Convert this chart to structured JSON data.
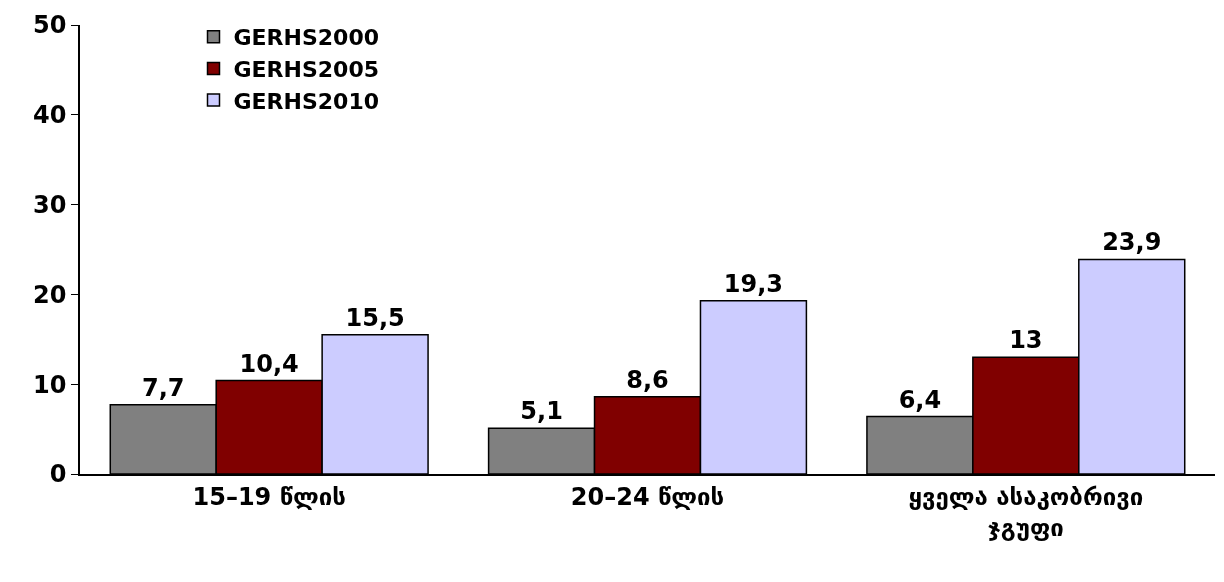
{
  "chart_data": {
    "type": "bar",
    "categories": [
      "15–19 წლის",
      "20–24 წლის",
      "ყველა ასაკობრივი ჯგუფი"
    ],
    "series": [
      {
        "name": "GERHS2000",
        "color": "#808080",
        "values": [
          7.7,
          5.1,
          6.4
        ],
        "value_labels": [
          "7,7",
          "5,1",
          "6,4"
        ]
      },
      {
        "name": "GERHS2005",
        "color": "#800000",
        "values": [
          10.4,
          8.6,
          13
        ],
        "value_labels": [
          "10,4",
          "8,6",
          "13"
        ]
      },
      {
        "name": "GERHS2010",
        "color": "#ccccff",
        "values": [
          15.5,
          19.3,
          23.9
        ],
        "value_labels": [
          "15,5",
          "19,3",
          "23,9"
        ]
      }
    ],
    "ylim": [
      0,
      50
    ],
    "yticks": [
      0,
      10,
      20,
      30,
      40,
      50
    ],
    "grid": false,
    "legend": "top left"
  }
}
